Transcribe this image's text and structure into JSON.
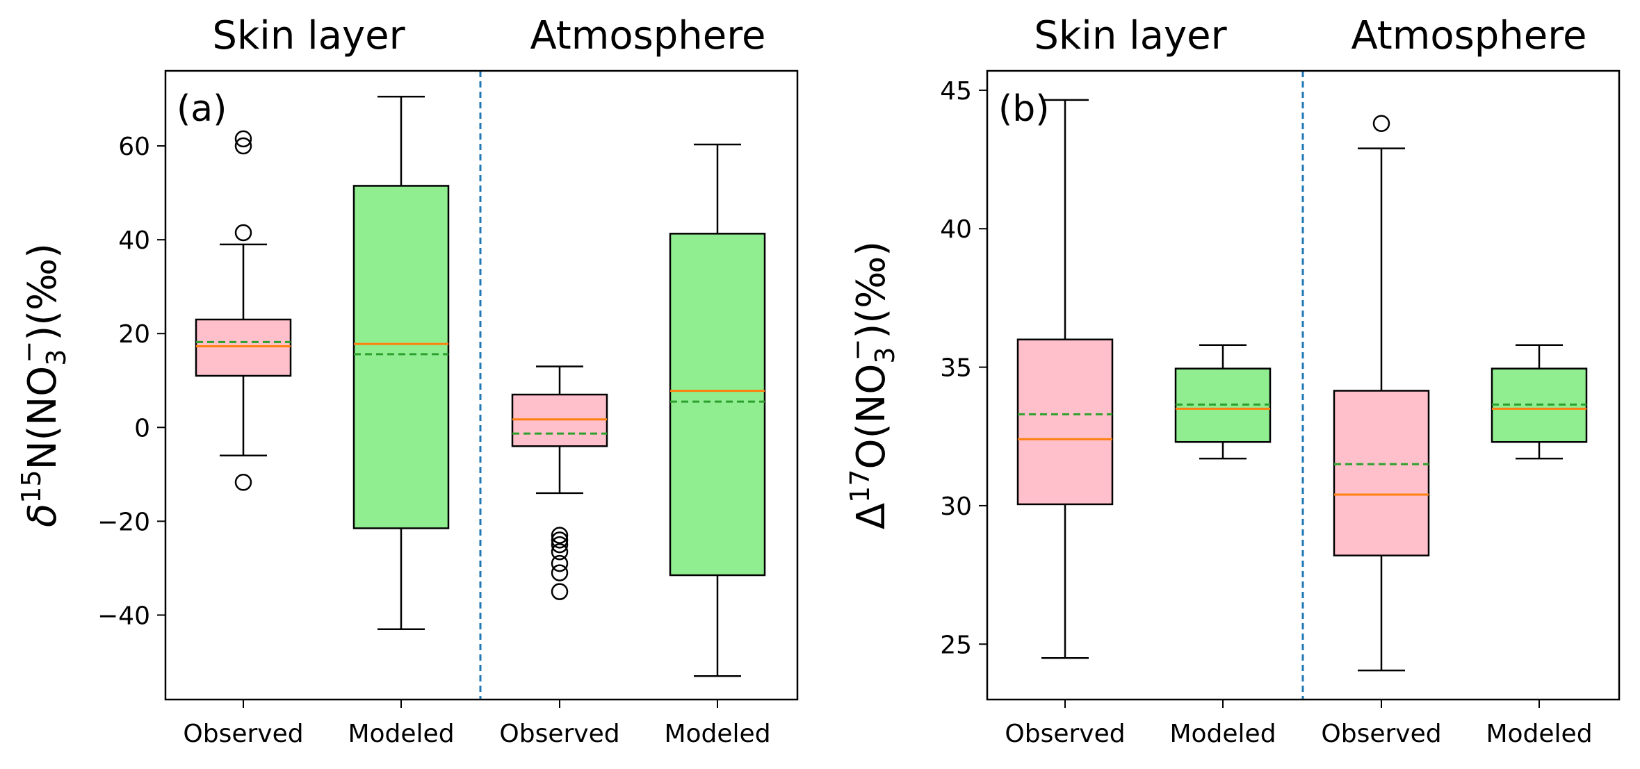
{
  "chart_data": [
    {
      "type": "boxplot",
      "panel_label": "(a)",
      "ylabel": "δ15N(NO3−)(‰)",
      "ylabel_parts": {
        "symbol": "δ",
        "isotope_mass": "15",
        "element": "N(NO",
        "subscript": "3",
        "superscript": "−",
        "tail": ")(‰)"
      },
      "ylim": [
        -58,
        76
      ],
      "yticks": [
        -40,
        -20,
        0,
        20,
        40,
        60
      ],
      "ytick_labels": [
        "−40",
        "−20",
        "0",
        "20",
        "40",
        "60"
      ],
      "group_titles": [
        "Skin layer",
        "Atmosphere"
      ],
      "categories": [
        "Observed",
        "Modeled",
        "Observed",
        "Modeled"
      ],
      "boxes": [
        {
          "group": "Skin layer",
          "category": "Observed",
          "whislo": -6,
          "q1": 11,
          "median": 17.3,
          "mean": 18.2,
          "q3": 23,
          "whishi": 39,
          "fliers": [
            -11.7,
            41.5,
            60,
            61.5
          ],
          "color": "#ffc0cb"
        },
        {
          "group": "Skin layer",
          "category": "Modeled",
          "whislo": -43,
          "q1": -21.5,
          "median": 17.8,
          "mean": 15.6,
          "q3": 51.5,
          "whishi": 70.5,
          "fliers": [],
          "color": "#90ee90"
        },
        {
          "group": "Atmosphere",
          "category": "Observed",
          "whislo": -14,
          "q1": -4,
          "median": 1.7,
          "mean": -1.3,
          "q3": 7,
          "whishi": 13,
          "fliers": [
            -35,
            -31,
            -29,
            -26.5,
            -25,
            -24,
            -23
          ],
          "color": "#ffc0cb"
        },
        {
          "group": "Atmosphere",
          "category": "Modeled",
          "whislo": -53,
          "q1": -31.5,
          "median": 7.8,
          "mean": 5.5,
          "q3": 41.3,
          "whishi": 60.3,
          "fliers": [],
          "color": "#90ee90"
        }
      ]
    },
    {
      "type": "boxplot",
      "panel_label": "(b)",
      "ylabel": "Δ17O(NO3−)(‰)",
      "ylabel_parts": {
        "symbol": "Δ",
        "isotope_mass": "17",
        "element": "O(NO",
        "subscript": "3",
        "superscript": "−",
        "tail": ")(‰)"
      },
      "ylim": [
        23.0,
        45.7
      ],
      "yticks": [
        25,
        30,
        35,
        40,
        45
      ],
      "ytick_labels": [
        "25",
        "30",
        "35",
        "40",
        "45"
      ],
      "group_titles": [
        "Skin layer",
        "Atmosphere"
      ],
      "categories": [
        "Observed",
        "Modeled",
        "Observed",
        "Modeled"
      ],
      "boxes": [
        {
          "group": "Skin layer",
          "category": "Observed",
          "whislo": 24.5,
          "q1": 30.05,
          "median": 32.4,
          "mean": 33.3,
          "q3": 36.0,
          "whishi": 44.65,
          "fliers": [],
          "color": "#ffc0cb"
        },
        {
          "group": "Skin layer",
          "category": "Modeled",
          "whislo": 31.7,
          "q1": 32.3,
          "median": 33.5,
          "mean": 33.65,
          "q3": 34.95,
          "whishi": 35.8,
          "fliers": [],
          "color": "#90ee90"
        },
        {
          "group": "Atmosphere",
          "category": "Observed",
          "whislo": 24.05,
          "q1": 28.2,
          "median": 30.4,
          "mean": 31.5,
          "q3": 34.15,
          "whishi": 42.9,
          "fliers": [
            43.8
          ],
          "color": "#ffc0cb"
        },
        {
          "group": "Atmosphere",
          "category": "Modeled",
          "whislo": 31.7,
          "q1": 32.3,
          "median": 33.5,
          "mean": 33.65,
          "q3": 34.95,
          "whishi": 35.8,
          "fliers": [],
          "color": "#90ee90"
        }
      ]
    }
  ],
  "colors": {
    "observed_box": "#ffc0cb",
    "modeled_box": "#90ee90",
    "median_line": "#ff7f0e",
    "mean_line": "#2ca02c",
    "separator_line": "#1f77b4"
  }
}
